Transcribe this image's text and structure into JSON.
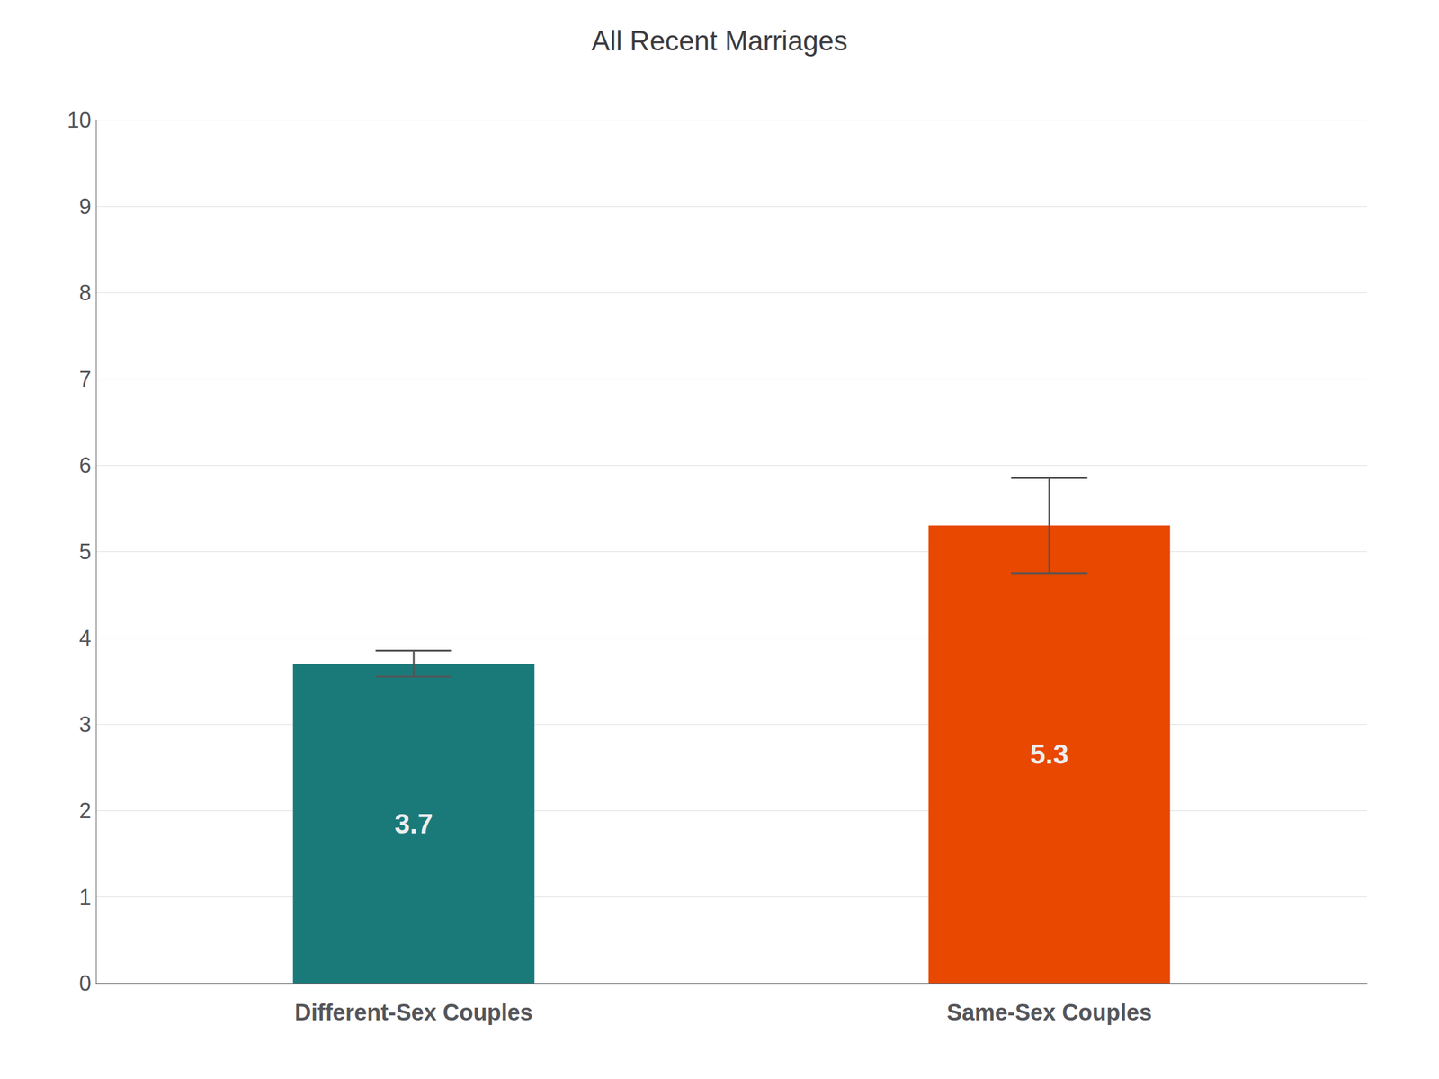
{
  "chart_data": {
    "type": "bar",
    "title": "All Recent Marriages",
    "categories": [
      "Different-Sex Couples",
      "Same-Sex Couples"
    ],
    "values": [
      3.7,
      5.3
    ],
    "errors": [
      0.15,
      0.55
    ],
    "colors": [
      "#1a7a7a",
      "#e84800"
    ],
    "ylim": [
      0,
      10
    ],
    "yticks": [
      0,
      1,
      2,
      3,
      4,
      5,
      6,
      7,
      8,
      9,
      10
    ],
    "grid": true,
    "data_labels": true
  }
}
